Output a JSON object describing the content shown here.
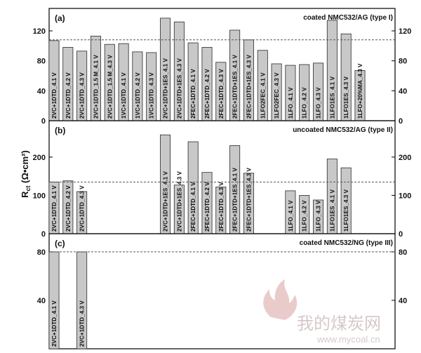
{
  "ylabel_main": "R",
  "ylabel_sub": "ct",
  "ylabel_unit": " (Ω•cm²)",
  "watermark": {
    "text": "我的煤炭网",
    "url": "www.mycoal.cn"
  },
  "chart_data": [
    {
      "type": "bar",
      "panel": "(a)",
      "title": "coated NMC532/AG (type I)",
      "ylim": [
        0,
        150
      ],
      "yticks": [
        0,
        40,
        80,
        120
      ],
      "reference_line": 108,
      "grid": false,
      "categories": [
        "2VC+1DTD_4.1 V",
        "2VC+1DTD_4.2 V",
        "2VC+1DTD_4.3 V",
        "2VC+1DTD_1.5 M_4.1 V",
        "2VC+1DTD_1.5 M_4.3 V",
        "1VC+1DTD_4.1 V",
        "1VC+1DTD_4.2 V",
        "1VC+1DTD_4.3 V",
        "2VC+1DTD+1ES_4.1 V",
        "2VC+1DTD+1ES_4.3 V",
        "2FEC+1DTD_4.1 V",
        "2FEC+1DTD_4.2 V",
        "2FEC+1DTD_4.3 V",
        "2FEC+1DTD+1ES_4.1 V",
        "2FEC+1DTD+1ES_4.3 V",
        "1LFO2FEC_4.1 V",
        "1LFO2FEC_4.3 V",
        "1LFO_4.1 V",
        "1LFO_4.2 V",
        "1LFO_4.3 V",
        "1LFO1ES_4.1 V",
        "1LFO1ES_4.3 V",
        "1LFO+20%MA_4.3 V"
      ],
      "values": [
        107,
        98,
        93,
        113,
        102,
        103,
        92,
        91,
        137,
        132,
        104,
        98,
        78,
        121,
        108,
        94,
        76,
        74,
        75,
        77,
        134,
        116,
        67
      ]
    },
    {
      "type": "bar",
      "panel": "(b)",
      "title": "uncoated NMC532/AG (type II)",
      "ylim": [
        0,
        295
      ],
      "yticks": [
        0,
        100,
        200
      ],
      "reference_line": 135,
      "grid": false,
      "categories": [
        "2VC+1DTD_4.1 V",
        "2VC+1DTD_4.2 V",
        "2VC+1DTD_4.3 V",
        "2VC+1DTD+1ES_4.1 V",
        "2VC+1DTD+1ES_4.3 V",
        "2FEC+1DTD_4.1 V",
        "2FEC+1DTD_4.2 V",
        "2FEC+1DTD_4.3 V",
        "2FEC+1DTD+1ES_4.1 V",
        "2FEC+1DTD+1ES_4.3 V",
        "1LFO_4.1 V",
        "1LFO_4.2 V",
        "1LFO_4.3 V",
        "1LFO1ES_4.1 V",
        "1LFO1ES_4.3 V"
      ],
      "slots": [
        0,
        1,
        2,
        8,
        9,
        10,
        11,
        12,
        13,
        14,
        17,
        18,
        19,
        20,
        21
      ],
      "slot_count": 23,
      "values": [
        135,
        138,
        110,
        258,
        127,
        240,
        160,
        122,
        230,
        158,
        112,
        100,
        88,
        195,
        172
      ]
    },
    {
      "type": "bar",
      "panel": "(c)",
      "title": "coated NMC532/NG (type III)",
      "ylim": [
        0,
        95
      ],
      "yticks": [
        40,
        80
      ],
      "reference_line": 80,
      "grid": false,
      "categories": [
        "2VC+1DTD_4.1 V",
        "2VC+1DTD_4.3 V"
      ],
      "slots": [
        0,
        2
      ],
      "slot_count": 23,
      "values": [
        80,
        80
      ]
    }
  ]
}
